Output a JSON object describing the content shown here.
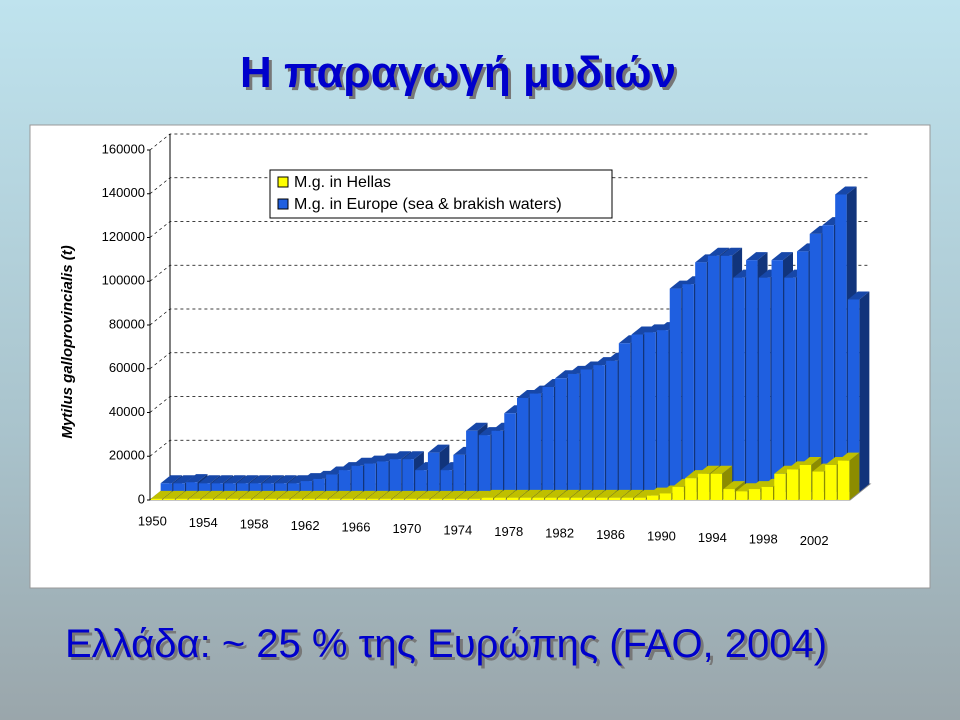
{
  "chart_data": {
    "type": "bar3d",
    "title": "Η παραγωγή μυδιών",
    "annotation": "Ελλάδα: ~ 25 % της Ευρώπης (FAO, 2004)",
    "y_label": "Mytilus galloprovincialis (t)",
    "x": [
      1950,
      1951,
      1952,
      1953,
      1954,
      1955,
      1956,
      1957,
      1958,
      1959,
      1960,
      1961,
      1962,
      1963,
      1964,
      1965,
      1966,
      1967,
      1968,
      1969,
      1970,
      1971,
      1972,
      1973,
      1974,
      1975,
      1976,
      1977,
      1978,
      1979,
      1980,
      1981,
      1982,
      1983,
      1984,
      1985,
      1986,
      1987,
      1988,
      1989,
      1990,
      1991,
      1992,
      1993,
      1994,
      1995,
      1996,
      1997,
      1998,
      1999,
      2000,
      2001,
      2002,
      2003,
      2004
    ],
    "xticks": [
      1950,
      1954,
      1958,
      1962,
      1966,
      1970,
      1974,
      1978,
      1982,
      1986,
      1990,
      1994,
      1998,
      2002
    ],
    "series": [
      {
        "name": "M.g. in Hellas",
        "color": "#ffff00",
        "values": [
          500,
          500,
          500,
          500,
          500,
          500,
          500,
          500,
          500,
          500,
          500,
          500,
          500,
          500,
          500,
          500,
          500,
          500,
          500,
          500,
          500,
          500,
          500,
          500,
          500,
          500,
          1000,
          1000,
          1000,
          1000,
          1000,
          1000,
          1000,
          1000,
          1000,
          1000,
          1000,
          1000,
          1000,
          2000,
          3000,
          6000,
          10000,
          12000,
          12000,
          5000,
          4000,
          5000,
          6000,
          12000,
          14000,
          16000,
          13000,
          16000,
          18000
        ]
      },
      {
        "name": "M.g. in Europe (sea & brakish waters)",
        "color": "#1f5fe0",
        "values": [
          4000,
          4000,
          4500,
          4000,
          4000,
          4000,
          4000,
          4000,
          4000,
          4000,
          4000,
          5000,
          6000,
          8000,
          10000,
          12000,
          13000,
          14000,
          15000,
          15000,
          10000,
          18000,
          10000,
          17000,
          28000,
          26000,
          28000,
          36000,
          43000,
          45000,
          48000,
          52000,
          54000,
          56000,
          58000,
          60000,
          68000,
          72000,
          73000,
          74000,
          93000,
          95000,
          105000,
          108000,
          108000,
          98000,
          106000,
          98000,
          106000,
          98000,
          110000,
          118000,
          122000,
          136000,
          88000
        ]
      }
    ],
    "ylim": [
      0,
      160000
    ],
    "yticks": [
      0,
      20000,
      40000,
      60000,
      80000,
      100000,
      120000,
      140000,
      160000
    ],
    "grid": true,
    "legend": "top-left"
  }
}
